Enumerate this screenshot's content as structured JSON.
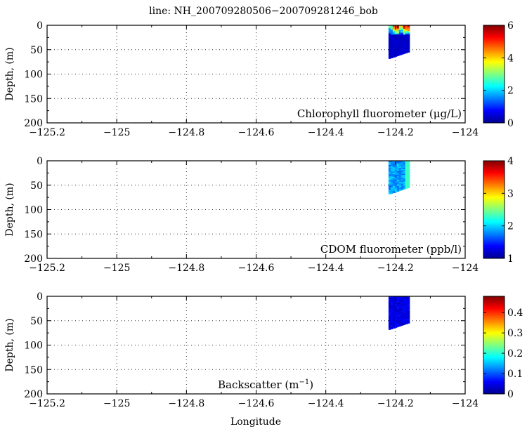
{
  "chart_data": {
    "title": "line: NH_200709280506−200709281246_bob",
    "xlabel": "Longitude",
    "xlim": [
      -125.2,
      -124
    ],
    "xticks": [
      -125.2,
      -125,
      -124.8,
      -124.6,
      -124.4,
      -124.2,
      -124
    ],
    "xtick_labels": [
      "−125.2",
      "−125",
      "−124.8",
      "−124.6",
      "−124.4",
      "−124.2",
      "−124"
    ],
    "grid": true,
    "panels": [
      {
        "type": "heatmap",
        "variable": "Chlorophyll fluorometer (μg/L)",
        "ylabel": "Depth, (m)",
        "ylim": [
          200,
          0
        ],
        "yticks": [
          0,
          50,
          100,
          150,
          200
        ],
        "clim": [
          0,
          6
        ],
        "cticks": [
          0,
          2,
          4,
          6
        ],
        "colormap": "jet",
        "data_extent": {
          "lon": [
            -124.22,
            -124.16
          ],
          "depth_left": 68,
          "depth_right": 55
        },
        "surface_values": [
          3,
          5,
          6,
          4,
          5.5,
          6
        ],
        "deep_value": 0.3,
        "surface_depth": 18
      },
      {
        "type": "heatmap",
        "variable": "CDOM fluorometer (ppb/l)",
        "ylabel": "Depth, (m)",
        "ylim": [
          200,
          0
        ],
        "yticks": [
          0,
          50,
          100,
          150,
          200
        ],
        "clim": [
          1,
          4
        ],
        "cticks": [
          1,
          2,
          3,
          4
        ],
        "colormap": "jet",
        "data_extent": {
          "lon": [
            -124.22,
            -124.16
          ],
          "depth_left": 68,
          "depth_right": 55
        },
        "typical_value": 1.85,
        "stripe_lon": -124.165,
        "stripe_value": 2.3
      },
      {
        "type": "heatmap",
        "variable": "Backscatter (m",
        "variable_sup": "−1",
        "variable_end": ")",
        "ylabel": "Depth, (m)",
        "ylim": [
          200,
          0
        ],
        "yticks": [
          0,
          50,
          100,
          150,
          200
        ],
        "clim": [
          0,
          0.48
        ],
        "cticks": [
          0,
          0.1,
          0.2,
          0.3,
          0.4
        ],
        "colormap": "jet",
        "data_extent": {
          "lon": [
            -124.22,
            -124.16
          ],
          "depth_left": 68,
          "depth_right": 55
        },
        "typical_value": 0.04
      }
    ]
  }
}
